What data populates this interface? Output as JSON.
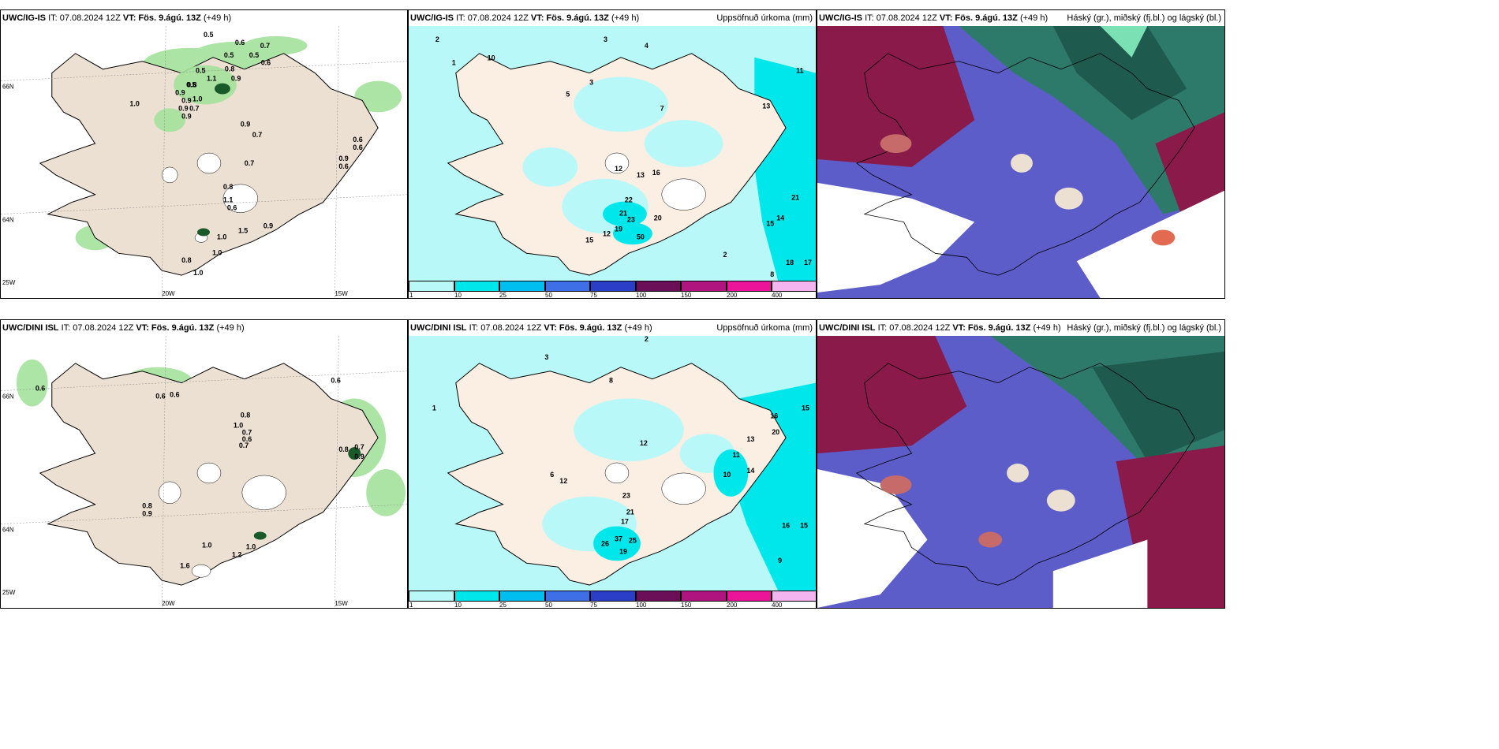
{
  "panels": [
    {
      "model": "UWC/IG-IS",
      "it": "IT: 07.08.2024 12Z",
      "vt_label": "VT:",
      "vt": "Fös. 9.ágú. 13Z",
      "lead": "(+49 h)",
      "right": "",
      "kind": "wind"
    },
    {
      "model": "UWC/IG-IS",
      "it": "IT: 07.08.2024 12Z",
      "vt_label": "VT:",
      "vt": "Fös. 9.ágú. 13Z",
      "lead": "(+49 h)",
      "right": "Uppsöfnuð úrkoma (mm)",
      "kind": "precip"
    },
    {
      "model": "UWC/IG-IS",
      "it": "IT: 07.08.2024 12Z",
      "vt_label": "VT:",
      "vt": "Fös. 9.ágú. 13Z",
      "lead": "(+49 h)",
      "right": "Háský (gr.), miðský (fj.bl.) og lágský (bl.)",
      "kind": "cloud"
    },
    {
      "model": "UWC/DINI ISL",
      "it": "IT: 07.08.2024 12Z",
      "vt_label": "VT:",
      "vt": "Fös. 9.ágú. 13Z",
      "lead": "(+49 h)",
      "right": "",
      "kind": "wind"
    },
    {
      "model": "UWC/DINI ISL",
      "it": "IT: 07.08.2024 12Z",
      "vt_label": "VT:",
      "vt": "Fös. 9.ágú. 13Z",
      "lead": "(+49 h)",
      "right": "Uppsöfnuð úrkoma (mm)",
      "kind": "precip"
    },
    {
      "model": "UWC/DINI ISL",
      "it": "IT: 07.08.2024 12Z",
      "vt_label": "VT:",
      "vt": "Fös. 9.ágú. 13Z",
      "lead": "(+49 h)",
      "right": "Háský (gr.), miðský (fj.bl.) og lágský (bl.)",
      "kind": "cloud"
    }
  ],
  "axis_labels": {
    "lat66": "66N",
    "lat64": "64N",
    "lon25": "25W",
    "lon20": "20W",
    "lon15": "15W"
  },
  "colorbar": {
    "ticks": [
      "1",
      "10",
      "25",
      "50",
      "75",
      "100",
      "150",
      "200",
      "400"
    ],
    "colors": [
      "#b9f8f8",
      "#00e7eb",
      "#00bff0",
      "#3f6fe6",
      "#2b3ec8",
      "#6b0f59",
      "#b0157f",
      "#ec1599",
      "#f4b4f0"
    ]
  },
  "wind_values_top": [
    "0.5",
    "0.6",
    "0.5",
    "0.7",
    "0.5",
    "0.5",
    "0.6",
    "0.5",
    "0.8",
    "1.1",
    "0.9",
    "1.0",
    "0.9",
    "0.8",
    "0.9",
    "1.0",
    "0.9",
    "0.7",
    "0.9",
    "0.9",
    "0.7",
    "0.7",
    "0.6",
    "0.6",
    "0.6",
    "1.1",
    "1.0",
    "1.0",
    "0.8",
    "1.0",
    "0.9",
    "0.9",
    "0.6",
    "1.5",
    "0.8"
  ],
  "wind_values_bottom": [
    "0.6",
    "0.6",
    "0.6",
    "0.6",
    "0.8",
    "1.0",
    "0.7",
    "0.6",
    "0.7",
    "0.8",
    "0.7",
    "0.8",
    "0.9",
    "1.0",
    "1.0",
    "1.2",
    "1.6",
    "0.9"
  ],
  "precip_values_top": [
    "2",
    "3",
    "4",
    "1",
    "10",
    "3",
    "5",
    "7",
    "12",
    "13",
    "16",
    "22",
    "21",
    "23",
    "20",
    "12",
    "19",
    "50",
    "15",
    "21",
    "14",
    "11",
    "13",
    "15",
    "18",
    "17",
    "2",
    "8"
  ],
  "precip_values_bottom": [
    "1",
    "3",
    "2",
    "8",
    "6",
    "12",
    "23",
    "21",
    "17",
    "25",
    "37",
    "26",
    "19",
    "12",
    "15",
    "16",
    "20",
    "13",
    "11",
    "16",
    "15",
    "14",
    "10",
    "9"
  ]
}
